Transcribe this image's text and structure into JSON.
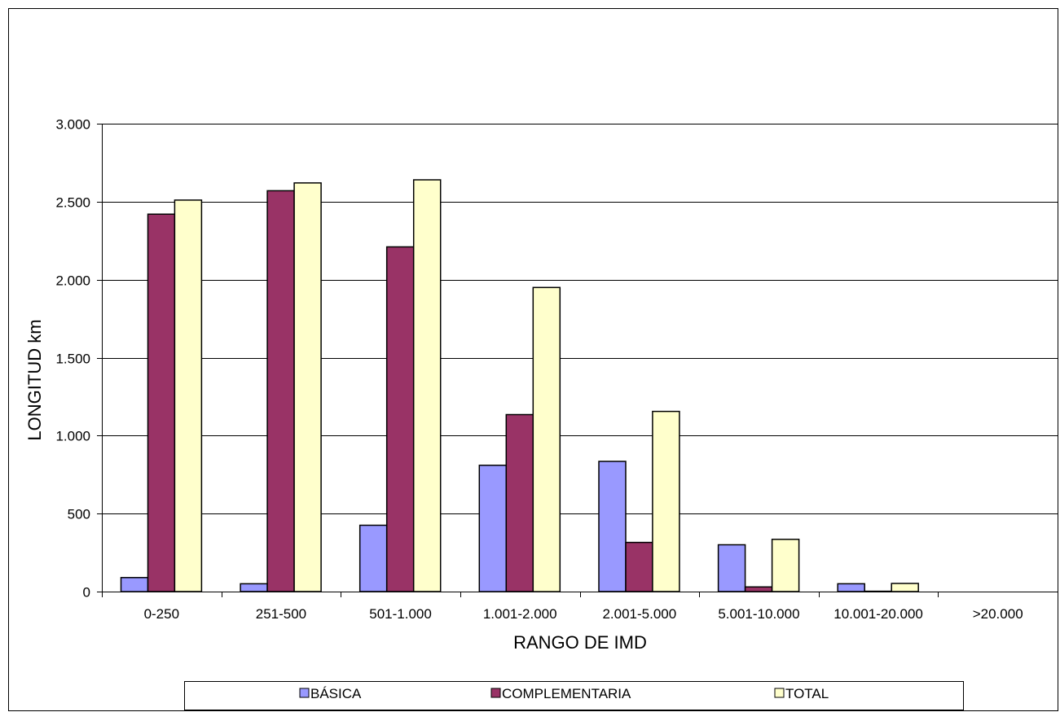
{
  "chart_data": {
    "type": "bar",
    "title": "",
    "xlabel": "RANGO DE IMD",
    "ylabel": "LONGITUD km",
    "categories": [
      "0-250",
      "251-500",
      "501-1.000",
      "1.001-2.000",
      "2.001-5.000",
      "5.001-10.000",
      "10.001-20.000",
      ">20.000"
    ],
    "series": [
      {
        "name": "BÁSICA",
        "color": "#9999ff",
        "values": [
          90,
          50,
          425,
          810,
          835,
          300,
          50,
          0
        ]
      },
      {
        "name": "COMPLEMENTARIA",
        "color": "#993366",
        "values": [
          2420,
          2570,
          2210,
          1135,
          315,
          30,
          2,
          0
        ]
      },
      {
        "name": "TOTAL",
        "color": "#ffffcc",
        "values": [
          2510,
          2620,
          2640,
          1950,
          1155,
          335,
          52,
          0
        ]
      }
    ],
    "ylim": [
      0,
      3000
    ],
    "yticks": [
      0,
      500,
      1000,
      1500,
      2000,
      2500,
      3000
    ],
    "ytick_labels": [
      "0",
      "500",
      "1.000",
      "1.500",
      "2.000",
      "2.500",
      "3.000"
    ],
    "grid": true,
    "legend_position": "bottom"
  }
}
